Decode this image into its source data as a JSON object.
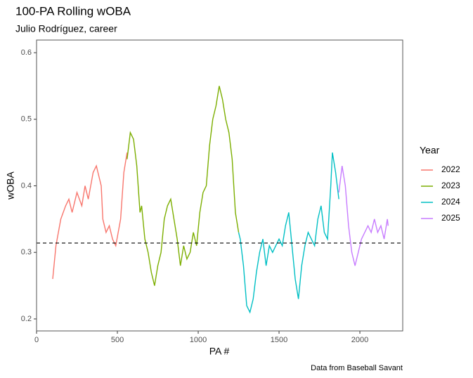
{
  "chart_data": {
    "type": "line",
    "title": "100-PA Rolling wOBA",
    "subtitle": "Julio Rodríguez, career",
    "x_label": "PA #",
    "y_label": "wOBA",
    "caption": "Data from Baseball Savant",
    "legend_title": "Year",
    "xlim": [
      0,
      2265
    ],
    "xticks": [
      0,
      500,
      1000,
      1500,
      2000
    ],
    "ylim": [
      0.182,
      0.619
    ],
    "yticks": [
      0.2,
      0.3,
      0.4,
      0.5,
      0.6
    ],
    "hline": 0.314,
    "series": [
      {
        "name": "2022",
        "color": "#F8766D",
        "x": [
          100,
          120,
          150,
          180,
          200,
          220,
          250,
          280,
          300,
          320,
          350,
          370,
          380,
          400,
          410,
          430,
          450,
          470,
          490,
          520,
          540,
          560
        ],
        "values": [
          0.26,
          0.31,
          0.35,
          0.37,
          0.38,
          0.36,
          0.39,
          0.37,
          0.4,
          0.38,
          0.42,
          0.43,
          0.42,
          0.4,
          0.35,
          0.33,
          0.34,
          0.32,
          0.31,
          0.35,
          0.42,
          0.45
        ]
      },
      {
        "name": "2023",
        "color": "#7CAE00",
        "x": [
          560,
          580,
          600,
          620,
          640,
          650,
          670,
          690,
          710,
          730,
          750,
          770,
          790,
          810,
          830,
          850,
          870,
          890,
          910,
          930,
          950,
          970,
          990,
          1010,
          1030,
          1050,
          1070,
          1090,
          1110,
          1130,
          1150,
          1170,
          1190,
          1210,
          1230,
          1250
        ],
        "values": [
          0.44,
          0.48,
          0.47,
          0.43,
          0.36,
          0.37,
          0.32,
          0.3,
          0.27,
          0.25,
          0.28,
          0.3,
          0.35,
          0.37,
          0.38,
          0.35,
          0.32,
          0.28,
          0.31,
          0.29,
          0.3,
          0.33,
          0.31,
          0.36,
          0.39,
          0.4,
          0.46,
          0.5,
          0.52,
          0.55,
          0.53,
          0.5,
          0.48,
          0.44,
          0.36,
          0.33
        ]
      },
      {
        "name": "2024",
        "color": "#00BFC4",
        "x": [
          1250,
          1260,
          1280,
          1300,
          1320,
          1340,
          1360,
          1380,
          1400,
          1420,
          1440,
          1460,
          1480,
          1500,
          1520,
          1540,
          1560,
          1580,
          1600,
          1620,
          1640,
          1660,
          1680,
          1700,
          1720,
          1740,
          1760,
          1780,
          1800,
          1820,
          1830,
          1850,
          1870
        ],
        "values": [
          0.33,
          0.32,
          0.28,
          0.22,
          0.21,
          0.23,
          0.27,
          0.3,
          0.32,
          0.28,
          0.31,
          0.3,
          0.31,
          0.32,
          0.31,
          0.34,
          0.36,
          0.31,
          0.26,
          0.23,
          0.28,
          0.31,
          0.33,
          0.32,
          0.31,
          0.35,
          0.37,
          0.33,
          0.32,
          0.4,
          0.45,
          0.42,
          0.38
        ]
      },
      {
        "name": "2025",
        "color": "#C77CFF",
        "x": [
          1870,
          1890,
          1910,
          1930,
          1950,
          1970,
          1990,
          2010,
          2030,
          2050,
          2070,
          2090,
          2110,
          2130,
          2150,
          2170,
          2175
        ],
        "values": [
          0.39,
          0.43,
          0.4,
          0.34,
          0.3,
          0.28,
          0.3,
          0.32,
          0.33,
          0.34,
          0.33,
          0.35,
          0.33,
          0.34,
          0.32,
          0.35,
          0.34
        ]
      }
    ]
  }
}
